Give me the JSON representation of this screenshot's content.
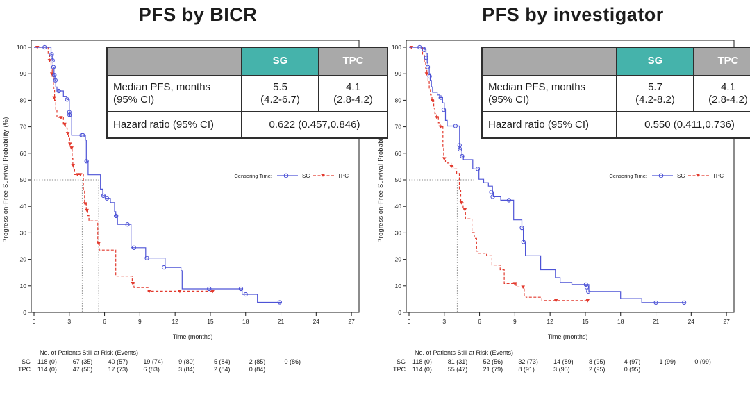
{
  "colors": {
    "sg": "#4d53d6",
    "tpc": "#e23a2e",
    "teal_header": "#45b3ab",
    "gray_header": "#a9a9a9",
    "ref_line": "#8a8a8a",
    "frame": "#1a1a1a"
  },
  "shared": {
    "ylabel": "Progression-Free Survival Probability (%)",
    "xlabel": "Time (months)",
    "yticks": [
      0,
      10,
      20,
      30,
      40,
      50,
      60,
      70,
      80,
      90,
      100
    ],
    "xticks": [
      0,
      3,
      6,
      9,
      12,
      15,
      18,
      21,
      24,
      27
    ],
    "ylim": [
      0,
      100
    ],
    "xlim": [
      0,
      27
    ],
    "legend": {
      "prefix": "Censoring Time:",
      "sg": "SG",
      "tpc": "TPC"
    },
    "risk_header": "No. of Patients Still at Risk (Events)"
  },
  "chart_data": [
    {
      "type": "line",
      "subtype": "kaplan-meier-step",
      "title": "PFS by BICR",
      "stats": {
        "sg_header": "SG",
        "tpc_header": "TPC",
        "median_label_1": "Median PFS, months",
        "median_label_2": "(95% CI)",
        "sg_median": "5.5",
        "sg_ci": "(4.2-6.7)",
        "tpc_median": "4.1",
        "tpc_ci": "(2.8-4.2)",
        "hr_label": "Hazard ratio (95% CI)",
        "hr_value": "0.622 (0.457,0.846)"
      },
      "medians": {
        "sg": 5.5,
        "tpc": 4.1
      },
      "series": [
        {
          "name": "SG",
          "color_key": "sg",
          "style": "solid",
          "end": 21.0,
          "steps": [
            [
              0,
              100
            ],
            [
              1.45,
              97.3
            ],
            [
              1.55,
              95
            ],
            [
              1.62,
              92.5
            ],
            [
              1.7,
              89.5
            ],
            [
              1.78,
              87.5
            ],
            [
              1.85,
              85
            ],
            [
              1.95,
              83.5
            ],
            [
              2.5,
              81.5
            ],
            [
              2.8,
              80.3
            ],
            [
              3.0,
              75.5
            ],
            [
              3.05,
              73.8
            ],
            [
              3.2,
              66.8
            ],
            [
              4.37,
              65
            ],
            [
              4.45,
              57
            ],
            [
              4.6,
              51.9
            ],
            [
              5.65,
              46.5
            ],
            [
              5.85,
              44
            ],
            [
              6.1,
              43
            ],
            [
              6.5,
              41.4
            ],
            [
              6.85,
              38
            ],
            [
              6.95,
              36.4
            ],
            [
              7.1,
              33.2
            ],
            [
              8.25,
              24.4
            ],
            [
              9.5,
              20.5
            ],
            [
              11.15,
              17
            ],
            [
              12.5,
              15.7
            ],
            [
              12.6,
              8.9
            ],
            [
              17.7,
              6.8
            ],
            [
              19.0,
              3.8
            ]
          ],
          "censors": [
            [
              0.9,
              100
            ],
            [
              1.5,
              97.3
            ],
            [
              1.58,
              95
            ],
            [
              1.65,
              92.5
            ],
            [
              1.73,
              89.5
            ],
            [
              1.82,
              87.5
            ],
            [
              2.1,
              83.5
            ],
            [
              2.82,
              80.3
            ],
            [
              3.0,
              75.5
            ],
            [
              3.02,
              74.5
            ],
            [
              4.05,
              66.8
            ],
            [
              4.15,
              66.8
            ],
            [
              4.47,
              57
            ],
            [
              5.9,
              44
            ],
            [
              6.2,
              43
            ],
            [
              6.98,
              36.4
            ],
            [
              7.95,
              33.2
            ],
            [
              8.5,
              24.4
            ],
            [
              9.6,
              20.5
            ],
            [
              11.05,
              17
            ],
            [
              14.9,
              8.9
            ],
            [
              17.6,
              8.9
            ],
            [
              18.0,
              6.8
            ],
            [
              20.9,
              3.8
            ]
          ]
        },
        {
          "name": "TPC",
          "color_key": "tpc",
          "style": "dashed",
          "end": 15.3,
          "steps": [
            [
              0,
              100
            ],
            [
              1.2,
              97
            ],
            [
              1.33,
              94.5
            ],
            [
              1.45,
              91.5
            ],
            [
              1.55,
              88.5
            ],
            [
              1.65,
              84.5
            ],
            [
              1.75,
              80
            ],
            [
              1.85,
              76.5
            ],
            [
              1.95,
              73.5
            ],
            [
              2.5,
              71
            ],
            [
              2.67,
              69.5
            ],
            [
              2.82,
              67.5
            ],
            [
              2.93,
              66
            ],
            [
              3.03,
              63.5
            ],
            [
              3.13,
              62
            ],
            [
              3.24,
              58
            ],
            [
              3.3,
              55.5
            ],
            [
              3.37,
              54
            ],
            [
              3.45,
              52
            ],
            [
              4.2,
              46
            ],
            [
              4.3,
              41
            ],
            [
              4.45,
              38.5
            ],
            [
              4.57,
              36.5
            ],
            [
              4.67,
              34.5
            ],
            [
              5.42,
              26
            ],
            [
              5.55,
              23.5
            ],
            [
              6.95,
              13.7
            ],
            [
              8.35,
              11
            ],
            [
              8.5,
              9.4
            ],
            [
              9.7,
              8
            ]
          ],
          "censors": [
            [
              0.28,
              100
            ],
            [
              1.32,
              95
            ],
            [
              1.52,
              90
            ],
            [
              1.72,
              81
            ],
            [
              2.3,
              73.5
            ],
            [
              2.6,
              71
            ],
            [
              2.87,
              67.5
            ],
            [
              3.06,
              63.5
            ],
            [
              3.2,
              62
            ],
            [
              3.32,
              55.5
            ],
            [
              3.7,
              52
            ],
            [
              3.95,
              52
            ],
            [
              4.35,
              41
            ],
            [
              4.5,
              38.5
            ],
            [
              5.5,
              26
            ],
            [
              8.4,
              11
            ],
            [
              9.8,
              8
            ],
            [
              12.4,
              8
            ],
            [
              15.2,
              8
            ]
          ]
        }
      ],
      "risk_table": {
        "rows": [
          {
            "label": "SG",
            "values": [
              "118 (0)",
              "67 (35)",
              "40 (57)",
              "19 (74)",
              "9 (80)",
              "5 (84)",
              "2 (85)",
              "0 (86)"
            ]
          },
          {
            "label": "TPC",
            "values": [
              "114 (0)",
              "47 (50)",
              "17 (73)",
              "6 (83)",
              "3 (84)",
              "2 (84)",
              "0 (84)"
            ]
          }
        ]
      }
    },
    {
      "type": "line",
      "subtype": "kaplan-meier-step",
      "title": "PFS by investigator",
      "stats": {
        "sg_header": "SG",
        "tpc_header": "TPC",
        "median_label_1": "Median PFS, months",
        "median_label_2": "(95% CI)",
        "sg_median": "5.7",
        "sg_ci": "(4.2-8.2)",
        "tpc_median": "4.1",
        "tpc_ci": "(2.8-4.2)",
        "hr_label": "Hazard ratio (95% CI)",
        "hr_value": "0.550 (0.411,0.736)"
      },
      "medians": {
        "sg": 5.7,
        "tpc": 4.1
      },
      "series": [
        {
          "name": "SG",
          "color_key": "sg",
          "style": "solid",
          "end": 23.5,
          "steps": [
            [
              0,
              100
            ],
            [
              1.35,
              99
            ],
            [
              1.45,
              97.7
            ],
            [
              1.55,
              94
            ],
            [
              1.62,
              92.5
            ],
            [
              1.72,
              90
            ],
            [
              1.8,
              87.5
            ],
            [
              1.9,
              85
            ],
            [
              2.0,
              83
            ],
            [
              2.4,
              82
            ],
            [
              2.6,
              81
            ],
            [
              2.85,
              79
            ],
            [
              3.0,
              76.4
            ],
            [
              3.1,
              72.4
            ],
            [
              3.25,
              70.3
            ],
            [
              4.3,
              61.5
            ],
            [
              4.5,
              58.9
            ],
            [
              4.62,
              57.6
            ],
            [
              5.42,
              54.1
            ],
            [
              5.95,
              50.2
            ],
            [
              6.35,
              48.9
            ],
            [
              6.75,
              47.6
            ],
            [
              7.1,
              45.4
            ],
            [
              7.17,
              43.6
            ],
            [
              7.8,
              42.3
            ],
            [
              8.9,
              34.9
            ],
            [
              9.6,
              31.9
            ],
            [
              9.72,
              26.6
            ],
            [
              9.9,
              21.4
            ],
            [
              11.2,
              16.1
            ],
            [
              12.45,
              13.1
            ],
            [
              12.85,
              11.3
            ],
            [
              13.85,
              10.5
            ],
            [
              15.3,
              7.9
            ],
            [
              18.0,
              5.2
            ],
            [
              19.8,
              3.7
            ]
          ],
          "censors": [
            [
              0.9,
              100
            ],
            [
              1.3,
              99
            ],
            [
              1.47,
              96
            ],
            [
              1.6,
              92.5
            ],
            [
              1.75,
              89
            ],
            [
              2.7,
              81
            ],
            [
              2.95,
              76.4
            ],
            [
              3.95,
              70.3
            ],
            [
              4.3,
              63
            ],
            [
              4.34,
              61.5
            ],
            [
              4.52,
              58.9
            ],
            [
              5.85,
              54.1
            ],
            [
              7.0,
              45.4
            ],
            [
              7.12,
              43.6
            ],
            [
              8.5,
              42.3
            ],
            [
              9.6,
              31.9
            ],
            [
              9.73,
              26.6
            ],
            [
              15.05,
              10.5
            ],
            [
              15.12,
              9.5
            ],
            [
              15.25,
              7.9
            ],
            [
              21.0,
              3.7
            ],
            [
              23.4,
              3.7
            ]
          ]
        },
        {
          "name": "TPC",
          "color_key": "tpc",
          "style": "dashed",
          "end": 15.3,
          "steps": [
            [
              0,
              100
            ],
            [
              1.15,
              97
            ],
            [
              1.3,
              94.5
            ],
            [
              1.42,
              91.5
            ],
            [
              1.52,
              90
            ],
            [
              1.62,
              87
            ],
            [
              1.72,
              84
            ],
            [
              1.82,
              82
            ],
            [
              1.95,
              80
            ],
            [
              2.1,
              77
            ],
            [
              2.2,
              75
            ],
            [
              2.35,
              73.5
            ],
            [
              2.5,
              71.5
            ],
            [
              2.65,
              70
            ],
            [
              2.88,
              62
            ],
            [
              2.95,
              58
            ],
            [
              3.1,
              56.3
            ],
            [
              3.58,
              55.1
            ],
            [
              3.75,
              54.1
            ],
            [
              4.05,
              52.4
            ],
            [
              4.28,
              46
            ],
            [
              4.4,
              41.4
            ],
            [
              4.6,
              38.8
            ],
            [
              4.8,
              35.3
            ],
            [
              5.35,
              30.1
            ],
            [
              5.55,
              27.9
            ],
            [
              5.75,
              23.1
            ],
            [
              5.9,
              22.3
            ],
            [
              6.6,
              21.4
            ],
            [
              7.05,
              17.9
            ],
            [
              7.75,
              16.1
            ],
            [
              8.1,
              10.9
            ],
            [
              9.1,
              9.6
            ],
            [
              9.8,
              6.1
            ],
            [
              9.95,
              5.7
            ],
            [
              11.3,
              4.5
            ]
          ],
          "censors": [
            [
              0.2,
              100
            ],
            [
              1.5,
              90
            ],
            [
              1.98,
              80
            ],
            [
              2.37,
              73.5
            ],
            [
              2.68,
              70
            ],
            [
              3.0,
              58
            ],
            [
              3.6,
              55.1
            ],
            [
              4.45,
              41.4
            ],
            [
              4.75,
              38.8
            ],
            [
              9.0,
              10.9
            ],
            [
              9.7,
              9.6
            ],
            [
              12.5,
              4.5
            ],
            [
              15.2,
              4.5
            ]
          ]
        }
      ],
      "risk_table": {
        "rows": [
          {
            "label": "SG",
            "values": [
              "118 (0)",
              "81 (31)",
              "52 (56)",
              "32 (73)",
              "14 (89)",
              "8 (95)",
              "4 (97)",
              "1 (99)",
              "0 (99)"
            ]
          },
          {
            "label": "TPC",
            "values": [
              "114 (0)",
              "55 (47)",
              "21 (79)",
              "8 (91)",
              "3 (95)",
              "2 (95)",
              "0 (95)"
            ]
          }
        ]
      }
    }
  ]
}
